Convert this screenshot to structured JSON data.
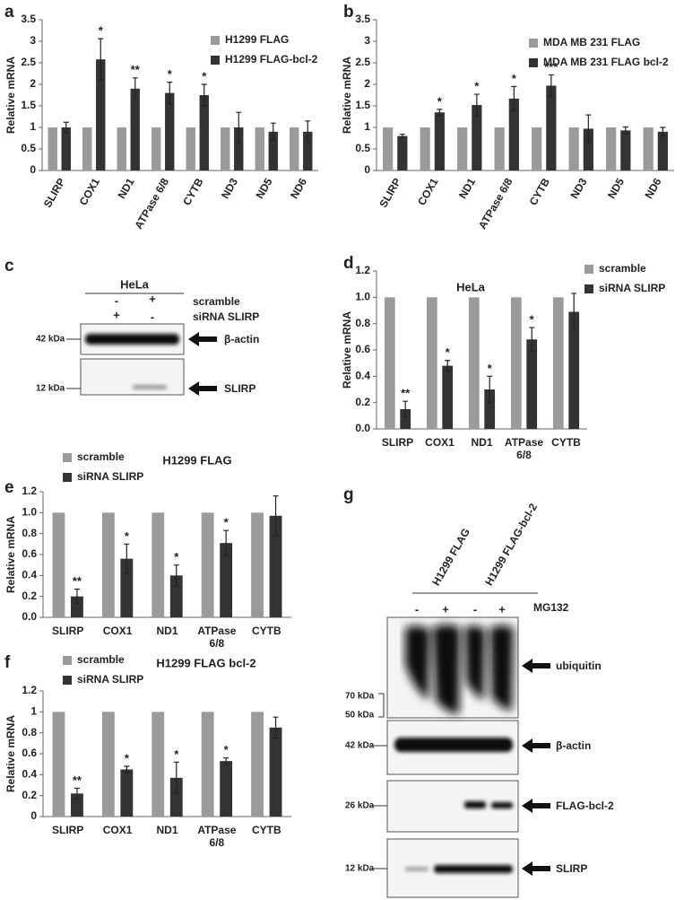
{
  "chart_data": [
    {
      "type": "bar",
      "panel": "a",
      "y_label": "Relative mRNA",
      "categories": [
        "SLIRP",
        "COX1",
        "ND1",
        "ATPase 6/8",
        "CYTB",
        "ND3",
        "ND5",
        "ND6"
      ],
      "series": [
        {
          "name": "H1299 FLAG",
          "color": "#9a9a9a",
          "values": [
            1,
            1,
            1,
            1,
            1,
            1,
            1,
            1
          ]
        },
        {
          "name": "H1299 FLAG-bcl-2",
          "color": "#333333",
          "values": [
            1.0,
            2.58,
            1.9,
            1.8,
            1.75,
            1.0,
            0.9,
            0.9
          ],
          "errors": [
            0.12,
            0.48,
            0.25,
            0.25,
            0.25,
            0.35,
            0.2,
            0.25
          ]
        }
      ],
      "annotations": [
        null,
        "*",
        "**",
        "*",
        "*",
        null,
        null,
        null
      ],
      "ylim": [
        0,
        3.5
      ],
      "yticks": [
        0,
        0.5,
        1,
        1.5,
        2,
        2.5,
        3,
        3.5
      ],
      "legend": "upper right"
    },
    {
      "type": "bar",
      "panel": "b",
      "y_label": "Relative mRNA",
      "categories": [
        "SLIRP",
        "COX1",
        "ND1",
        "ATPase 6/8",
        "CYTB",
        "ND3",
        "ND5",
        "ND6"
      ],
      "series": [
        {
          "name": "MDA MB 231 FLAG",
          "color": "#9a9a9a",
          "values": [
            1,
            1,
            1,
            1,
            1,
            1,
            1,
            1
          ]
        },
        {
          "name": "MDA MB 231 FLAG bcl-2",
          "color": "#333333",
          "values": [
            0.8,
            1.35,
            1.52,
            1.67,
            1.97,
            0.97,
            0.93,
            0.9
          ],
          "errors": [
            0.04,
            0.07,
            0.25,
            0.28,
            0.25,
            0.32,
            0.08,
            0.1
          ]
        }
      ],
      "annotations": [
        null,
        "*",
        "*",
        "*",
        "***",
        null,
        null,
        null
      ],
      "ylim": [
        0,
        3.5
      ],
      "yticks": [
        0,
        0.5,
        1,
        1.5,
        2,
        2.5,
        3,
        3.5
      ],
      "legend": "upper right"
    },
    {
      "type": "bar",
      "panel": "d",
      "title": "HeLa",
      "y_label": "Relative mRNA",
      "categories": [
        "SLIRP",
        "COX1",
        "ND1",
        "ATPase 6/8",
        "CYTB"
      ],
      "series": [
        {
          "name": "scramble",
          "color": "#9a9a9a",
          "values": [
            1,
            1,
            1,
            1,
            1
          ]
        },
        {
          "name": "siRNA SLIRP",
          "color": "#333333",
          "values": [
            0.15,
            0.48,
            0.3,
            0.68,
            0.89
          ],
          "errors": [
            0.06,
            0.04,
            0.1,
            0.09,
            0.14
          ]
        }
      ],
      "annotations": [
        "**",
        "*",
        "*",
        "*",
        null
      ],
      "ylim": [
        0,
        1.2
      ],
      "yticks": [
        {
          "value": 0,
          "label": "0.0"
        },
        0.2,
        0.4,
        0.6,
        0.8,
        {
          "value": 1,
          "label": "1.0"
        },
        1.2
      ],
      "legend": "outside right"
    },
    {
      "type": "bar",
      "panel": "e",
      "title": "H1299 FLAG",
      "y_label": "Relative mRNA",
      "categories": [
        "SLIRP",
        "COX1",
        "ND1",
        "ATPase 6/8",
        "CYTB"
      ],
      "series": [
        {
          "name": "scramble",
          "color": "#9a9a9a",
          "values": [
            1,
            1,
            1,
            1,
            1
          ]
        },
        {
          "name": "siRNA SLIRP",
          "color": "#333333",
          "values": [
            0.2,
            0.56,
            0.4,
            0.71,
            0.97
          ],
          "errors": [
            0.07,
            0.14,
            0.1,
            0.12,
            0.19
          ]
        }
      ],
      "annotations": [
        "**",
        "*",
        "*",
        "*",
        null
      ],
      "ylim": [
        0,
        1.2
      ],
      "yticks": [
        {
          "value": 0,
          "label": "0.0"
        },
        0.2,
        0.4,
        0.6,
        0.8,
        {
          "value": 1,
          "label": "1.0"
        },
        1.2
      ],
      "legend": "upper left"
    },
    {
      "type": "bar",
      "panel": "f",
      "title": "H1299 FLAG bcl-2",
      "y_label": "Relative mRNA",
      "categories": [
        "SLIRP",
        "COX1",
        "ND1",
        "ATPase 6/8",
        "CYTB"
      ],
      "series": [
        {
          "name": "scramble",
          "color": "#9a9a9a",
          "values": [
            1,
            1,
            1,
            1,
            1
          ]
        },
        {
          "name": "siRNA SLIRP",
          "color": "#333333",
          "values": [
            0.22,
            0.45,
            0.37,
            0.53,
            0.85
          ],
          "errors": [
            0.05,
            0.03,
            0.15,
            0.03,
            0.1
          ]
        }
      ],
      "annotations": [
        "**",
        "*",
        "*",
        "*",
        null
      ],
      "ylim": [
        0,
        1.2
      ],
      "yticks": [
        0,
        0.2,
        0.4,
        0.6,
        0.8,
        1,
        1.2
      ],
      "legend": "upper left"
    }
  ],
  "blots": [
    {
      "panel": "c",
      "title": "HeLa",
      "conditions": [
        {
          "name": "scramble",
          "lanes": [
            "-",
            "+"
          ]
        },
        {
          "name": "siRNA SLIRP",
          "lanes": [
            "+",
            "-"
          ]
        }
      ],
      "bands": [
        {
          "marker": "42 kDa",
          "label": "β-actin"
        },
        {
          "marker": "12 kDa",
          "label": "SLIRP"
        }
      ]
    },
    {
      "panel": "g",
      "groups": [
        "H1299 FLAG",
        "H1299 FLAG-bcl-2"
      ],
      "treatment": "MG132",
      "lanes": [
        "-",
        "+",
        "-",
        "+"
      ],
      "bands": [
        {
          "markers": [
            "70 kDa",
            "50 kDa"
          ],
          "label": "ubiquitin"
        },
        {
          "markers": [
            "42 kDa"
          ],
          "label": "β-actin"
        },
        {
          "markers": [
            "26 kDa"
          ],
          "label": "FLAG-bcl-2"
        },
        {
          "markers": [
            "12 kDa"
          ],
          "label": "SLIRP"
        }
      ]
    }
  ]
}
